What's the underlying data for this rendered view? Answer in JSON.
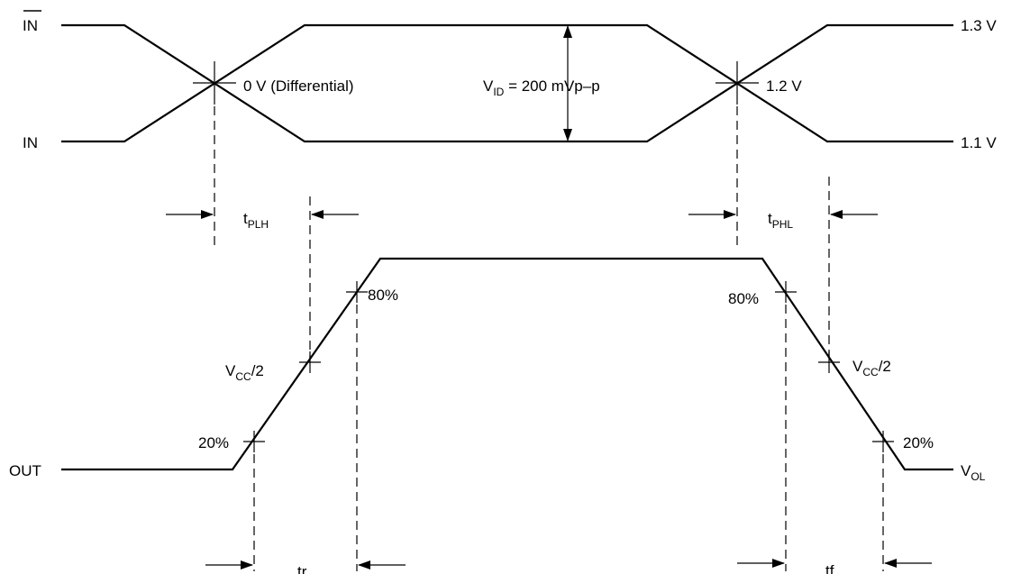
{
  "signals": {
    "in_bar": "IN",
    "in": "IN",
    "out": "OUT"
  },
  "levels": {
    "high": "1.3 V",
    "low": "1.1 V",
    "crossing": "1.2 V",
    "differential": "0 V (Differential)",
    "vid_main": "V",
    "vid_sub": "ID",
    "vid_value": " = 200 mVp–p",
    "vol_main": "V",
    "vol_sub": "OL"
  },
  "timing": {
    "tplh_main": "t",
    "tplh_sub": "PLH",
    "tphl_main": "t",
    "tphl_sub": "PHL",
    "tr": "tr",
    "tf": "tf"
  },
  "percent": {
    "p80_rise": "80%",
    "p80_fall": "80%",
    "p20_rise": "20%",
    "p20_fall": "20%",
    "vcc_rise_main": "V",
    "vcc_rise_sub": "CC",
    "vcc_rise_tail": "/2",
    "vcc_fall_main": "V",
    "vcc_fall_sub": "CC",
    "vcc_fall_tail": "/2"
  }
}
